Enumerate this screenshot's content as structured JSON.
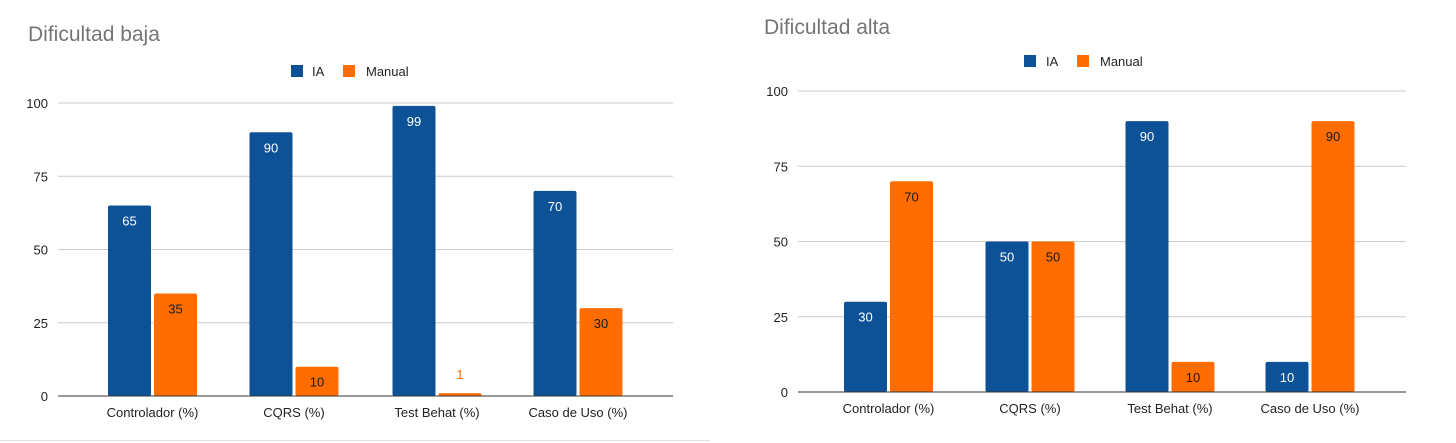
{
  "colors": {
    "ia": "#0d5196",
    "manual": "#ff6d01",
    "grid": "#cccccc",
    "axis": "#333333"
  },
  "chart_data": [
    {
      "type": "bar",
      "title": "Dificultad baja",
      "categories": [
        "Controlador (%)",
        "CQRS (%)",
        "Test Behat (%)",
        "Caso de Uso (%)"
      ],
      "series": [
        {
          "name": "IA",
          "values": [
            65,
            90,
            99,
            70
          ]
        },
        {
          "name": "Manual",
          "values": [
            35,
            10,
            1,
            30
          ]
        }
      ],
      "yticks": [
        "0",
        "25",
        "50",
        "75",
        "100"
      ],
      "ylim": [
        0,
        100
      ],
      "grid": true,
      "legend": "top-center"
    },
    {
      "type": "bar",
      "title": "Dificultad alta",
      "categories": [
        "Controlador (%)",
        "CQRS (%)",
        "Test Behat (%)",
        "Caso de Uso (%)"
      ],
      "series": [
        {
          "name": "IA",
          "values": [
            30,
            50,
            90,
            10
          ]
        },
        {
          "name": "Manual",
          "values": [
            70,
            50,
            10,
            90
          ]
        }
      ],
      "yticks": [
        "0",
        "25",
        "50",
        "75",
        "100"
      ],
      "ylim": [
        0,
        100
      ],
      "grid": true,
      "legend": "top-center"
    }
  ]
}
